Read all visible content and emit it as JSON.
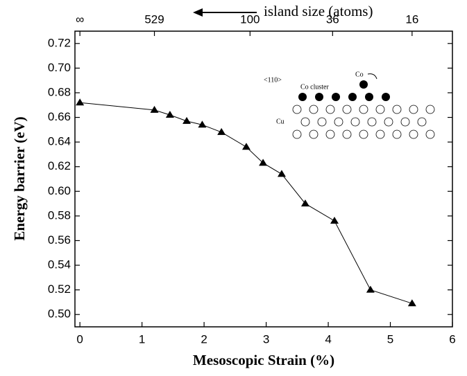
{
  "chart_data": {
    "type": "line",
    "x_label": "Mesoscopic Strain (%)",
    "y_label": "Energy barrier (eV)",
    "top_label": "island size (atoms)",
    "x": [
      0,
      1.2,
      1.45,
      1.72,
      1.97,
      2.28,
      2.68,
      2.95,
      3.25,
      3.63,
      4.1,
      4.68,
      5.35
    ],
    "series": [
      {
        "color": "#000000",
        "values": [
          0.672,
          0.666,
          0.662,
          0.657,
          0.654,
          0.648,
          0.636,
          0.623,
          0.614,
          0.59,
          0.576,
          0.52,
          0.509
        ]
      }
    ],
    "xlim": [
      -0.08,
      6
    ],
    "ylim": [
      0.49,
      0.73
    ],
    "xticks": [
      0,
      1,
      2,
      3,
      4,
      5,
      6
    ],
    "yticks": [
      {
        "value": 0.5,
        "label": "0.50"
      },
      0.52,
      0.54,
      0.56,
      0.58,
      {
        "value": 0.6,
        "label": "0.60"
      },
      0.62,
      0.64,
      0.66,
      0.68,
      {
        "value": 0.7,
        "label": "0.70"
      },
      0.72
    ],
    "x2ticks": [
      {
        "value": 0,
        "label": "∞"
      },
      {
        "value": 1.2,
        "label": "529"
      },
      {
        "value": 2.74,
        "label": "100"
      },
      {
        "value": 4.07,
        "label": "36"
      },
      {
        "value": 5.35,
        "label": "16"
      }
    ],
    "inset_labels": [
      "<110>",
      "Co",
      "Co cluster",
      "Cu"
    ]
  }
}
